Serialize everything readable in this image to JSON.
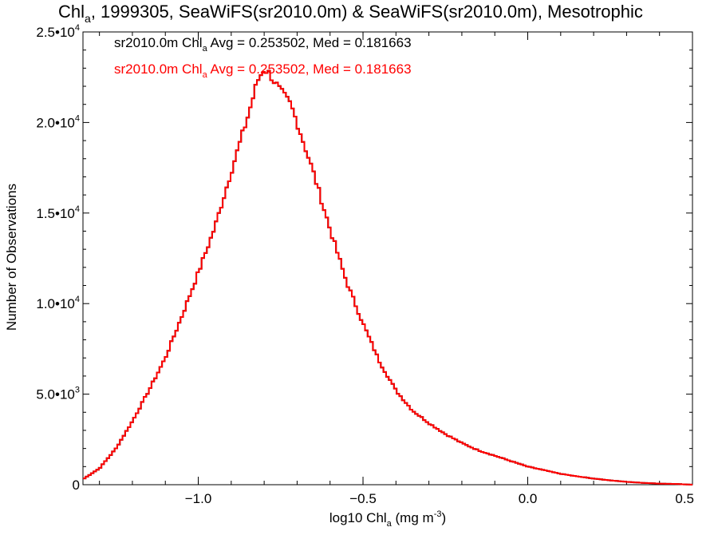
{
  "colors": {
    "background": "#ffffff",
    "axes": "#000000",
    "series_black": "#000000",
    "series_red": "#ff0000"
  },
  "chart_data": {
    "type": "step histogram",
    "title": {
      "base": "Chl",
      "sub": "a",
      "rest": ", 1999305, SeaWiFS(sr2010.0m) & SeaWiFS(sr2010.0m), Mesotrophic"
    },
    "xlabel": {
      "base": "log10 Chl",
      "sub": "a",
      "rest": " (mg m",
      "sup": "-3",
      "close": ")"
    },
    "ylabel": "Number of Observations",
    "xlim": [
      -1.35,
      0.5
    ],
    "ylim": [
      0,
      25000
    ],
    "x_ticks": [
      {
        "value": -1.0,
        "label": "−1.0"
      },
      {
        "value": -0.5,
        "label": "−0.5"
      },
      {
        "value": 0.0,
        "label": "0.0"
      },
      {
        "value": 0.5,
        "label": "0.5"
      }
    ],
    "y_ticks": [
      {
        "value": 0,
        "label": "0"
      },
      {
        "value": 5000,
        "mantissa": "5.0•10",
        "exp": "3"
      },
      {
        "value": 10000,
        "mantissa": "1.0•10",
        "exp": "4"
      },
      {
        "value": 15000,
        "mantissa": "1.5•10",
        "exp": "4"
      },
      {
        "value": 20000,
        "mantissa": "2.0•10",
        "exp": "4"
      },
      {
        "value": 25000,
        "mantissa": "2.5•10",
        "exp": "4"
      }
    ],
    "legend": [
      {
        "pre": "sr2010.0m Chl",
        "sub": "a",
        "post": " Avg = 0.253502, Med = 0.181663",
        "color": "#000000"
      },
      {
        "pre": "sr2010.0m Chl",
        "sub": "a",
        "post": " Avg = 0.253502, Med = 0.181663",
        "color": "#ff0000"
      }
    ],
    "legend_position": "top-left",
    "series": [
      {
        "color": "#000000",
        "values_ref": "shared"
      },
      {
        "color": "#ff0000",
        "values_ref": "shared"
      }
    ],
    "x": [
      -1.35,
      -1.3,
      -1.25,
      -1.2,
      -1.15,
      -1.1,
      -1.05,
      -1.0,
      -0.95,
      -0.9,
      -0.85,
      -0.82,
      -0.8,
      -0.78,
      -0.75,
      -0.72,
      -0.7,
      -0.65,
      -0.6,
      -0.55,
      -0.5,
      -0.45,
      -0.4,
      -0.35,
      -0.3,
      -0.25,
      -0.2,
      -0.15,
      -0.1,
      -0.05,
      0.0,
      0.05,
      0.1,
      0.15,
      0.2,
      0.25,
      0.3,
      0.35,
      0.4,
      0.45,
      0.5
    ],
    "y": [
      300,
      900,
      2000,
      3500,
      5200,
      7000,
      9300,
      11700,
      14200,
      17300,
      20300,
      22300,
      23000,
      22600,
      21700,
      21000,
      20000,
      17200,
      14100,
      11200,
      8900,
      6800,
      5200,
      4100,
      3400,
      2800,
      2300,
      1900,
      1600,
      1300,
      1000,
      800,
      600,
      460,
      340,
      240,
      160,
      100,
      60,
      40,
      0
    ]
  }
}
